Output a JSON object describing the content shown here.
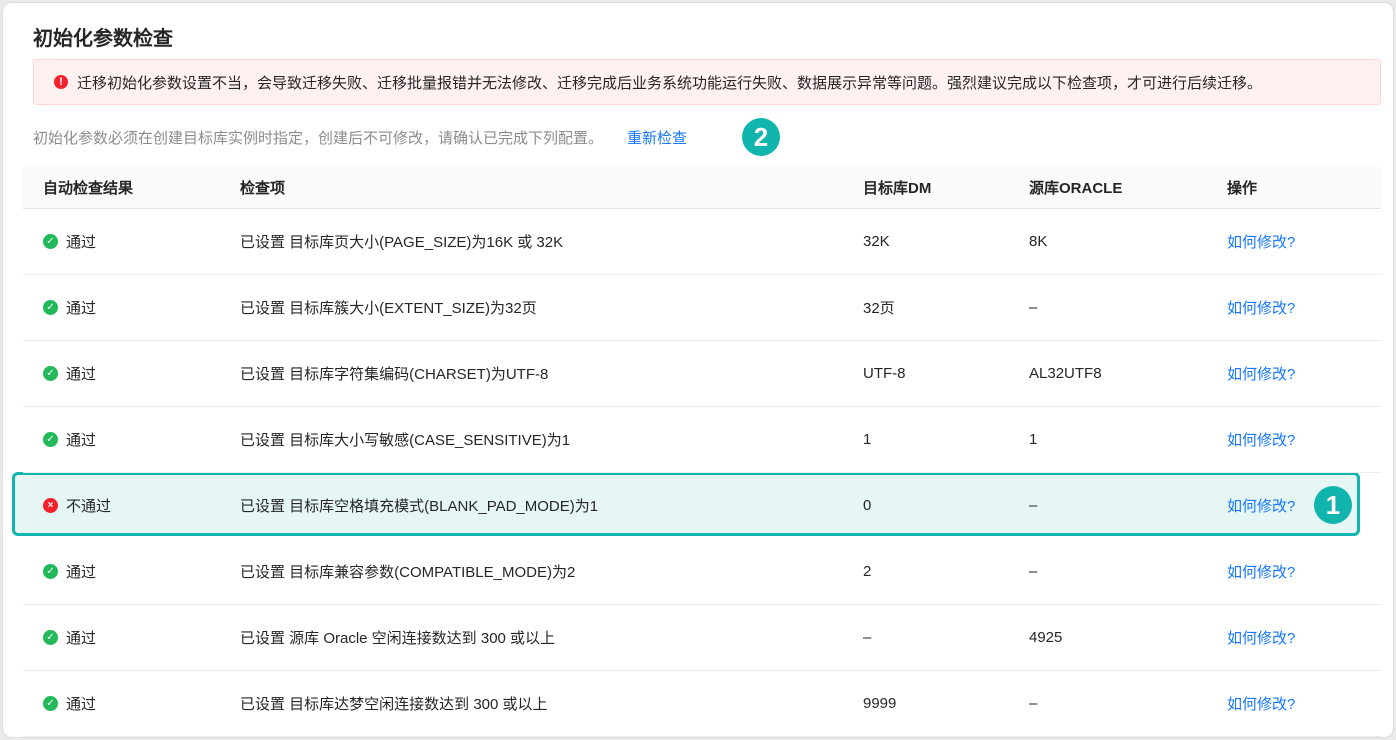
{
  "title": "初始化参数检查",
  "alert": {
    "icon": "exclamation-circle-icon",
    "text": "迁移初始化参数设置不当，会导致迁移失败、迁移批量报错并无法修改、迁移完成后业务系统功能运行失败、数据展示异常等问题。强烈建议完成以下检查项，才可进行后续迁移。"
  },
  "subtitle": "初始化参数必须在创建目标库实例时指定，创建后不可修改，请确认已完成下列配置。",
  "recheck_label": "重新检查",
  "badges": {
    "one": "1",
    "two": "2"
  },
  "colors": {
    "accent": "#12b5ad",
    "link": "#1677ff",
    "pass": "#21b95a",
    "fail": "#f5222d"
  },
  "table": {
    "headers": [
      "自动检查结果",
      "检查项",
      "目标库DM",
      "源库ORACLE",
      "操作"
    ],
    "rows": [
      {
        "status": "通过",
        "pass": true,
        "item": "已设置 目标库页大小(PAGE_SIZE)为16K 或 32K",
        "dm": "32K",
        "oracle": "8K",
        "action": "如何修改?"
      },
      {
        "status": "通过",
        "pass": true,
        "item": "已设置 目标库簇大小(EXTENT_SIZE)为32页",
        "dm": "32页",
        "oracle": "–",
        "action": "如何修改?"
      },
      {
        "status": "通过",
        "pass": true,
        "item": "已设置 目标库字符集编码(CHARSET)为UTF-8",
        "dm": "UTF-8",
        "oracle": "AL32UTF8",
        "action": "如何修改?"
      },
      {
        "status": "通过",
        "pass": true,
        "item": "已设置 目标库大小写敏感(CASE_SENSITIVE)为1",
        "dm": "1",
        "oracle": "1",
        "action": "如何修改?"
      },
      {
        "status": "不通过",
        "pass": false,
        "item": "已设置 目标库空格填充模式(BLANK_PAD_MODE)为1",
        "dm": "0",
        "oracle": "–",
        "action": "如何修改?"
      },
      {
        "status": "通过",
        "pass": true,
        "item": "已设置 目标库兼容参数(COMPATIBLE_MODE)为2",
        "dm": "2",
        "oracle": "–",
        "action": "如何修改?"
      },
      {
        "status": "通过",
        "pass": true,
        "item": "已设置 源库 Oracle 空闲连接数达到 300 或以上",
        "dm": "–",
        "oracle": "4925",
        "action": "如何修改?"
      },
      {
        "status": "通过",
        "pass": true,
        "item": "已设置 目标库达梦空闲连接数达到 300 或以上",
        "dm": "9999",
        "oracle": "–",
        "action": "如何修改?"
      }
    ]
  }
}
